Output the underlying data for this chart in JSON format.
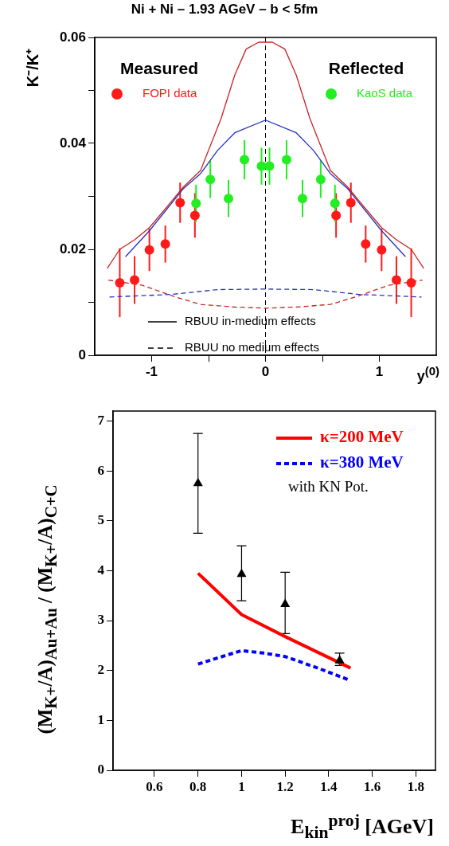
{
  "chart_data": [
    {
      "type": "scatter",
      "title": "Ni + Ni – 1.93 AGeV – b < 5fm",
      "xlabel": "y$^{(0)}$",
      "ylabel": "K⁻/K⁺",
      "xlim": [
        -1.5,
        1.5
      ],
      "xticks": [
        -1,
        {
          "value": -0.5,
          "label": null
        },
        0,
        {
          "value": 0.5,
          "label": null
        },
        1
      ],
      "ylim": [
        0,
        0.06
      ],
      "yticks": [
        0,
        {
          "value": 0.01,
          "label": null
        },
        0.02,
        {
          "value": 0.03,
          "label": null
        },
        0.04,
        {
          "value": 0.05,
          "label": null
        },
        0.06
      ],
      "grid": false,
      "legend": "top",
      "annotations": [
        "Measured",
        "Reflected",
        "RBUU in-medium effects",
        "RBUU no medium effects"
      ],
      "ref_lines": [
        {
          "axis": "x",
          "value": 0,
          "color": "#000000",
          "line_style": "dashed"
        }
      ],
      "series": [
        {
          "name": "FOPI data",
          "marker": "circle",
          "color": "#ff1a1a",
          "x": [
            -1.28,
            -1.15,
            -1.02,
            -0.88,
            -0.75,
            -0.62,
            0.62,
            0.75,
            0.88,
            1.02,
            1.15,
            1.28
          ],
          "values": [
            0.0137,
            0.0142,
            0.0199,
            0.021,
            0.0288,
            0.0264,
            0.0264,
            0.0288,
            0.021,
            0.0199,
            0.0142,
            0.0137
          ],
          "errors": [
            0.0065,
            0.0045,
            0.004,
            0.0035,
            0.0038,
            0.0042,
            0.0042,
            0.0038,
            0.0035,
            0.004,
            0.0045,
            0.0065
          ]
        },
        {
          "name": "KaoS data",
          "marker": "circle",
          "color": "#22ee22",
          "x": [
            -0.61,
            -0.485,
            -0.325,
            -0.185,
            -0.035,
            0.035,
            0.185,
            0.325,
            0.485,
            0.61
          ],
          "values": [
            0.0287,
            0.0332,
            0.0296,
            0.0369,
            0.0357,
            0.0357,
            0.0369,
            0.0296,
            0.0332,
            0.0287
          ],
          "errors": [
            0.0035,
            0.0035,
            0.0035,
            0.0037,
            0.0035,
            0.0035,
            0.0037,
            0.0035,
            0.0035,
            0.0035
          ]
        },
        {
          "type": "line",
          "line_style": "solid",
          "color": "#cc2222",
          "x": [
            -1.39,
            -1.28,
            -1.15,
            -1.02,
            -0.87,
            -0.72,
            -0.57,
            -0.39,
            -0.27,
            -0.17,
            -0.06,
            0.06,
            0.17,
            0.27,
            0.39,
            0.57,
            0.72,
            0.87,
            1.02,
            1.15,
            1.28,
            1.39
          ],
          "values": [
            0.0164,
            0.02,
            0.0218,
            0.0241,
            0.0279,
            0.0318,
            0.0349,
            0.0447,
            0.0529,
            0.0578,
            0.0591,
            0.0591,
            0.0578,
            0.0529,
            0.0447,
            0.0349,
            0.0318,
            0.0279,
            0.0241,
            0.0218,
            0.02,
            0.0164
          ]
        },
        {
          "type": "line",
          "line_style": "solid",
          "color": "#2233bb",
          "x": [
            -1.23,
            -1.02,
            -0.72,
            -0.57,
            -0.42,
            -0.27,
            0,
            0.27,
            0.42,
            0.57,
            0.72,
            1.02,
            1.23
          ],
          "values": [
            0.0186,
            0.0235,
            0.0315,
            0.0343,
            0.0387,
            0.042,
            0.0444,
            0.042,
            0.0387,
            0.0343,
            0.0315,
            0.0235,
            0.0186
          ]
        },
        {
          "type": "line",
          "line_style": "dashed",
          "color": "#cc2222",
          "x": [
            -1.38,
            -1.08,
            -0.79,
            -0.57,
            -0.27,
            0,
            0.27,
            0.57,
            0.79,
            1.08,
            1.38
          ],
          "values": [
            0.0142,
            0.0132,
            0.011,
            0.0096,
            0.0091,
            0.0089,
            0.0091,
            0.0096,
            0.011,
            0.0132,
            0.0142
          ]
        },
        {
          "type": "line",
          "line_style": "dashed",
          "color": "#2233bb",
          "x": [
            -1.37,
            -0.82,
            -0.42,
            0,
            0.42,
            0.82,
            1.37
          ],
          "values": [
            0.011,
            0.0115,
            0.0124,
            0.0125,
            0.0124,
            0.0115,
            0.011
          ]
        }
      ]
    },
    {
      "type": "line",
      "xlabel": "E$_{kin}$$^{proj}$ [AGeV]",
      "ylabel": "(M$_{K+}$/A)$_{Au+Au}$ / (M$_{K+}$/A)$_{C+C}$",
      "xlim": [
        0.41,
        1.89
      ],
      "xticks": [
        0.6,
        0.8,
        1,
        1.2,
        1.4,
        1.6,
        1.8
      ],
      "ylim": [
        0,
        7.2
      ],
      "yticks": [
        0,
        1,
        2,
        3,
        4,
        5,
        6,
        7
      ],
      "grid": false,
      "legend": "top right",
      "annotations": [
        "with KN Pot."
      ],
      "series": [
        {
          "type": "scatter",
          "marker": "triangle",
          "color": "#000000",
          "x": [
            0.8,
            1.0,
            1.2,
            1.45
          ],
          "values": [
            5.75,
            3.93,
            3.33,
            2.2
          ],
          "errors": [
            [
              4.75,
              6.75
            ],
            [
              3.4,
              4.5
            ],
            [
              2.74,
              3.97
            ],
            [
              2.1,
              2.35
            ]
          ]
        },
        {
          "name": "κ=200 MeV",
          "line_style": "solid",
          "color": "#ff0000",
          "x": [
            0.8,
            1.0,
            1.2,
            1.5
          ],
          "values": [
            3.95,
            3.12,
            2.68,
            2.05
          ]
        },
        {
          "name": "κ=380 MeV",
          "line_style": "dashed",
          "color": "#0000ff",
          "x": [
            0.8,
            1.0,
            1.1,
            1.2,
            1.35,
            1.5
          ],
          "values": [
            2.13,
            2.4,
            2.35,
            2.28,
            2.05,
            1.8
          ]
        }
      ]
    }
  ]
}
